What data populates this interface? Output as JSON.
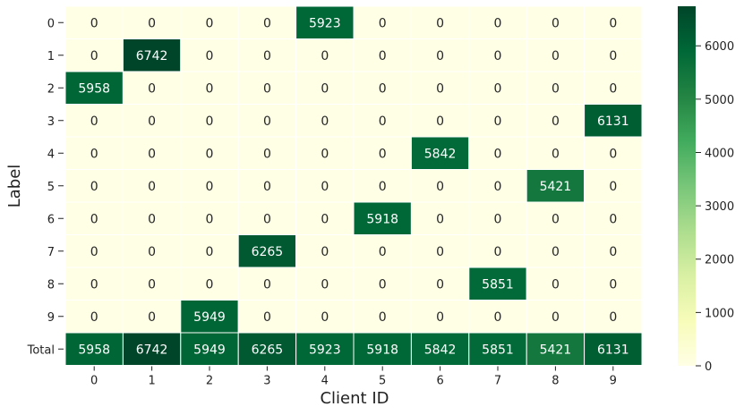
{
  "chart_data": {
    "type": "heatmap",
    "title": "",
    "xlabel": "Client ID",
    "ylabel": "Label",
    "x_categories": [
      "0",
      "1",
      "2",
      "3",
      "4",
      "5",
      "6",
      "7",
      "8",
      "9"
    ],
    "y_categories": [
      "0",
      "1",
      "2",
      "3",
      "4",
      "5",
      "6",
      "7",
      "8",
      "9",
      "Total"
    ],
    "values": [
      [
        0,
        0,
        0,
        0,
        5923,
        0,
        0,
        0,
        0,
        0
      ],
      [
        0,
        6742,
        0,
        0,
        0,
        0,
        0,
        0,
        0,
        0
      ],
      [
        5958,
        0,
        0,
        0,
        0,
        0,
        0,
        0,
        0,
        0
      ],
      [
        0,
        0,
        0,
        0,
        0,
        0,
        0,
        0,
        0,
        6131
      ],
      [
        0,
        0,
        0,
        0,
        0,
        0,
        5842,
        0,
        0,
        0
      ],
      [
        0,
        0,
        0,
        0,
        0,
        0,
        0,
        0,
        5421,
        0
      ],
      [
        0,
        0,
        0,
        0,
        0,
        5918,
        0,
        0,
        0,
        0
      ],
      [
        0,
        0,
        0,
        6265,
        0,
        0,
        0,
        0,
        0,
        0
      ],
      [
        0,
        0,
        0,
        0,
        0,
        0,
        0,
        5851,
        0,
        0
      ],
      [
        0,
        0,
        5949,
        0,
        0,
        0,
        0,
        0,
        0,
        0
      ],
      [
        5958,
        6742,
        5949,
        6265,
        5923,
        5918,
        5842,
        5851,
        5421,
        6131
      ]
    ],
    "colormap": "YlGn",
    "vmin": 0,
    "vmax": 6742,
    "colorbar_ticks": [
      "0",
      "1000",
      "2000",
      "3000",
      "4000",
      "5000",
      "6000"
    ],
    "colorbar_tick_values": [
      0,
      1000,
      2000,
      3000,
      4000,
      5000,
      6000
    ],
    "grid": false,
    "legend": "colorbar-right",
    "text_color_light": "#ffffff",
    "text_color_dark": "#262626"
  }
}
